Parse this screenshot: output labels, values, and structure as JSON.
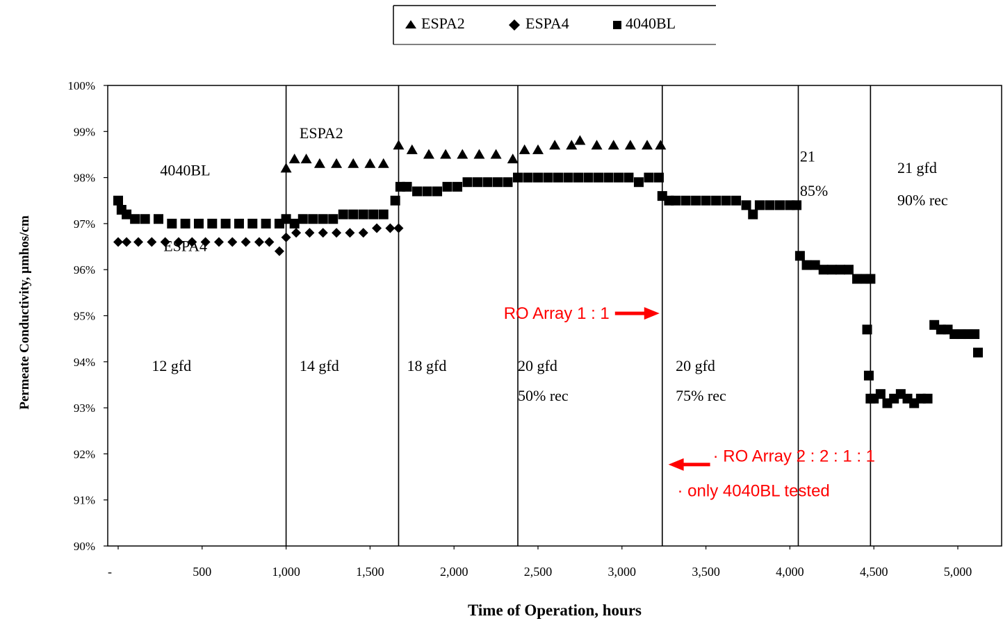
{
  "chart_data": {
    "type": "scatter",
    "xlabel": "Time of Operation, hours",
    "ylabel": "Permeate Conductivity, µmhos/cm",
    "xlim": [
      0,
      5150
    ],
    "ylim": [
      0.9,
      1.0
    ],
    "grid": false,
    "legend_position": "top-center",
    "x_ticks": [
      {
        "value": 0,
        "label": "-"
      },
      {
        "value": 500,
        "label": "500"
      },
      {
        "value": 1000,
        "label": "1,000"
      },
      {
        "value": 1500,
        "label": "1,500"
      },
      {
        "value": 2000,
        "label": "2,000"
      },
      {
        "value": 2500,
        "label": "2,500"
      },
      {
        "value": 3000,
        "label": "3,000"
      },
      {
        "value": 3500,
        "label": "3,500"
      },
      {
        "value": 4000,
        "label": "4,000"
      },
      {
        "value": 4500,
        "label": "4,500"
      },
      {
        "value": 5000,
        "label": "5,000"
      }
    ],
    "y_ticks": [
      {
        "value": 0.9,
        "label": "90%"
      },
      {
        "value": 0.91,
        "label": "91%"
      },
      {
        "value": 0.92,
        "label": "92%"
      },
      {
        "value": 0.93,
        "label": "93%"
      },
      {
        "value": 0.94,
        "label": "94%"
      },
      {
        "value": 0.95,
        "label": "95%"
      },
      {
        "value": 0.96,
        "label": "96%"
      },
      {
        "value": 0.97,
        "label": "97%"
      },
      {
        "value": 0.98,
        "label": "98%"
      },
      {
        "value": 0.99,
        "label": "99%"
      },
      {
        "value": 1.0,
        "label": "100%"
      }
    ],
    "phase_boundaries": [
      1000,
      1670,
      2380,
      3240,
      4050,
      4480
    ],
    "series": [
      {
        "name": "ESPA2",
        "marker": "triangle",
        "x": [
          1000,
          1050,
          1120,
          1200,
          1300,
          1400,
          1500,
          1580,
          1670,
          1750,
          1850,
          1950,
          2050,
          2150,
          2250,
          2350,
          2420,
          2500,
          2600,
          2700,
          2750,
          2850,
          2950,
          3050,
          3150,
          3230
        ],
        "y": [
          0.982,
          0.984,
          0.984,
          0.983,
          0.983,
          0.983,
          0.983,
          0.983,
          0.987,
          0.986,
          0.985,
          0.985,
          0.985,
          0.985,
          0.985,
          0.984,
          0.986,
          0.986,
          0.987,
          0.987,
          0.988,
          0.987,
          0.987,
          0.987,
          0.987,
          0.987
        ]
      },
      {
        "name": "ESPA4",
        "marker": "diamond",
        "x": [
          0,
          50,
          120,
          200,
          280,
          360,
          440,
          520,
          600,
          680,
          760,
          840,
          900,
          960,
          1000,
          1060,
          1140,
          1220,
          1300,
          1380,
          1460,
          1540,
          1620,
          1670
        ],
        "y": [
          0.966,
          0.966,
          0.966,
          0.966,
          0.966,
          0.966,
          0.966,
          0.966,
          0.966,
          0.966,
          0.966,
          0.966,
          0.966,
          0.964,
          0.967,
          0.968,
          0.968,
          0.968,
          0.968,
          0.968,
          0.968,
          0.969,
          0.969,
          0.969
        ]
      },
      {
        "name": "4040BL",
        "marker": "square",
        "x": [
          0,
          20,
          50,
          100,
          160,
          240,
          320,
          400,
          480,
          560,
          640,
          720,
          800,
          880,
          960,
          1000,
          1050,
          1100,
          1160,
          1220,
          1280,
          1340,
          1400,
          1460,
          1520,
          1580,
          1650,
          1680,
          1720,
          1780,
          1840,
          1900,
          1960,
          2020,
          2080,
          2140,
          2200,
          2260,
          2320,
          2380,
          2440,
          2500,
          2560,
          2620,
          2680,
          2740,
          2800,
          2860,
          2920,
          2980,
          3040,
          3100,
          3160,
          3220,
          3240,
          3280,
          3320,
          3380,
          3440,
          3500,
          3560,
          3620,
          3680,
          3740,
          3780,
          3820,
          3880,
          3940,
          4000,
          4040,
          4060,
          4100,
          4150,
          4200,
          4250,
          4300,
          4350,
          4400,
          4450,
          4480,
          4460,
          4470,
          4480,
          4500,
          4540,
          4580,
          4620,
          4660,
          4700,
          4740,
          4780,
          4820,
          4860,
          4900,
          4940,
          4980,
          5020,
          5060,
          5100,
          5120
        ],
        "y": [
          0.975,
          0.973,
          0.972,
          0.971,
          0.971,
          0.971,
          0.97,
          0.97,
          0.97,
          0.97,
          0.97,
          0.97,
          0.97,
          0.97,
          0.97,
          0.971,
          0.97,
          0.971,
          0.971,
          0.971,
          0.971,
          0.972,
          0.972,
          0.972,
          0.972,
          0.972,
          0.975,
          0.978,
          0.978,
          0.977,
          0.977,
          0.977,
          0.978,
          0.978,
          0.979,
          0.979,
          0.979,
          0.979,
          0.979,
          0.98,
          0.98,
          0.98,
          0.98,
          0.98,
          0.98,
          0.98,
          0.98,
          0.98,
          0.98,
          0.98,
          0.98,
          0.979,
          0.98,
          0.98,
          0.976,
          0.975,
          0.975,
          0.975,
          0.975,
          0.975,
          0.975,
          0.975,
          0.975,
          0.974,
          0.972,
          0.974,
          0.974,
          0.974,
          0.974,
          0.974,
          0.963,
          0.961,
          0.961,
          0.96,
          0.96,
          0.96,
          0.96,
          0.958,
          0.958,
          0.958,
          0.947,
          0.937,
          0.932,
          0.932,
          0.933,
          0.931,
          0.932,
          0.933,
          0.932,
          0.931,
          0.932,
          0.932,
          0.948,
          0.947,
          0.947,
          0.946,
          0.946,
          0.946,
          0.946,
          0.942
        ]
      }
    ],
    "annotations": [
      {
        "text": "4040BL",
        "x": 250,
        "y": 0.9805
      },
      {
        "text": "ESPA4",
        "x": 270,
        "y": 0.964
      },
      {
        "text": "ESPA2",
        "x": 1080,
        "y": 0.9885
      },
      {
        "text": "12 gfd",
        "x": 200,
        "y": 0.938
      },
      {
        "text": "14 gfd",
        "x": 1080,
        "y": 0.938
      },
      {
        "text": "18 gfd",
        "x": 1720,
        "y": 0.938
      },
      {
        "text": "20 gfd",
        "x": 2380,
        "y": 0.938
      },
      {
        "text": "50% rec",
        "x": 2380,
        "y": 0.9315
      },
      {
        "text": "20 gfd",
        "x": 3320,
        "y": 0.938
      },
      {
        "text": "75% rec",
        "x": 3320,
        "y": 0.9315
      },
      {
        "text": "21",
        "x": 4060,
        "y": 0.9835
      },
      {
        "text": "85%",
        "x": 4060,
        "y": 0.976
      },
      {
        "text": "21 gfd",
        "x": 4640,
        "y": 0.981
      },
      {
        "text": "90% rec",
        "x": 4640,
        "y": 0.974
      }
    ],
    "callouts": [
      {
        "text": "RO Array 1 : 1",
        "arrow": "right",
        "arrow_target_x": 3240,
        "y": 0.9505
      },
      {
        "text": "·  RO Array 2 : 2 : 1 : 1",
        "arrow": "left",
        "arrow_target_x": 3260,
        "y": 0.9195
      },
      {
        "text": "· only 4040BL tested",
        "y": 0.912
      }
    ]
  }
}
